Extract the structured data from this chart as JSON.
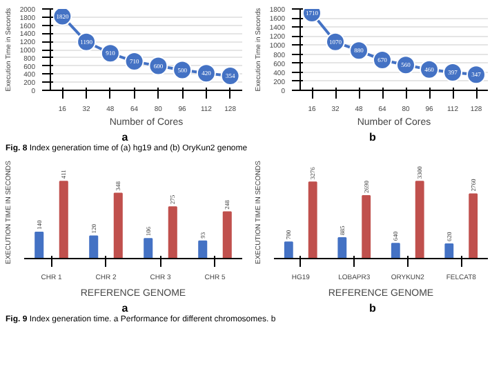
{
  "chart_data": [
    {
      "type": "line",
      "xlabel": "Number of Cores",
      "ylabel": "Execution Time in Seconds",
      "categories": [
        "16",
        "32",
        "48",
        "64",
        "80",
        "96",
        "112",
        "128"
      ],
      "series": [
        {
          "color": "#4472c4",
          "values": [
            1820,
            1190,
            910,
            710,
            600,
            500,
            420,
            354
          ]
        }
      ],
      "ylim": [
        0,
        2000
      ],
      "yticks": [
        0,
        200,
        400,
        600,
        800,
        1000,
        1200,
        1400,
        1600,
        1800,
        2000
      ],
      "grid": "y",
      "marker": "circle",
      "data_labels": true,
      "annotations": [
        "a",
        "Fig. 8 Index generation time of (a) hg19 and (b) OryKun2 genome"
      ]
    },
    {
      "type": "line",
      "xlabel": "Number of Cores",
      "ylabel": "Execution Time in Seconds",
      "categories": [
        "16",
        "32",
        "48",
        "64",
        "80",
        "96",
        "112",
        "128"
      ],
      "series": [
        {
          "color": "#4472c4",
          "values": [
            1710,
            1070,
            880,
            670,
            560,
            460,
            397,
            347
          ]
        }
      ],
      "ylim": [
        0,
        1800
      ],
      "yticks": [
        0,
        200,
        400,
        600,
        800,
        1000,
        1200,
        1400,
        1600,
        1800
      ],
      "grid": "y",
      "marker": "circle",
      "data_labels": true,
      "annotations": [
        "b"
      ]
    },
    {
      "type": "bar",
      "xlabel": "REFERENCE GENOME",
      "ylabel": "EXECUTION TIME IN SECONDS",
      "categories": [
        "CHR 1",
        "CHR 2",
        "CHR 3",
        "CHR 5"
      ],
      "series": [
        {
          "color": "#4472c4",
          "values": [
            140,
            120,
            106,
            93
          ]
        },
        {
          "color": "#c0504d",
          "values": [
            411,
            348,
            275,
            248
          ]
        }
      ],
      "tick_labels": "x",
      "data_labels": true,
      "annotations": [
        "a",
        "Fig. 9 Index generation time. a Performance for different chromosomes. b"
      ]
    },
    {
      "type": "bar",
      "xlabel": "REFERENCE GENOME",
      "ylabel": "EXECUTION TIME IN SECONDS",
      "categories": [
        "HG19",
        "LOBAPR3",
        "ORYKUN2",
        "FELCAT8"
      ],
      "series": [
        {
          "color": "#4472c4",
          "values": [
            700,
            885,
            640,
            620
          ]
        },
        {
          "color": "#c0504d",
          "values": [
            3276,
            2690,
            3300,
            2760
          ]
        }
      ],
      "tick_labels": "x",
      "data_labels": true,
      "annotations": [
        "b"
      ]
    }
  ]
}
